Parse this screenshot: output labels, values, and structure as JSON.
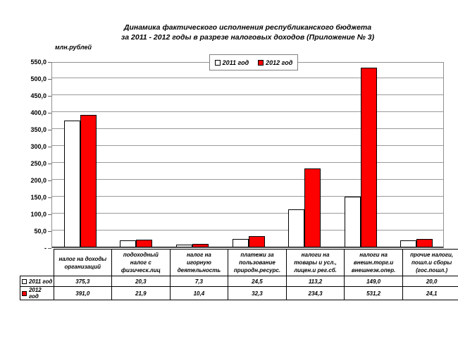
{
  "chart_data": {
    "type": "bar",
    "title": "Динамика фактического исполнения республиканского бюджета за 2011 - 2012 годы в разрезе налоговых доходов (Приложение № 3)",
    "title_line1": "Динамика фактического исполнения республиканского бюджета",
    "title_line2": "за 2011 - 2012 годы в разрезе налоговых доходов (Приложение № 3)",
    "units_label": "млн.рублей",
    "categories": [
      "налог на доходы\nорганизаций",
      "подоходный\nналог с\nфизическ.лиц",
      "налог на\nигорную\nдеятельность",
      "платежи за\nпользование\nприродн.ресурс.",
      "налоги на\nтовары и усл.,\nлицен.и рег.сб.",
      "налоги на\nвнешн.торг.и\nвнешнеэк.опер.",
      "прочие налоги,\nпошл.и сборы\n(гос.пошл.)"
    ],
    "series": [
      {
        "name": "2011 год",
        "color": "#FFFFFF",
        "values": [
          375.3,
          20.3,
          7.3,
          24.5,
          113.2,
          149.0,
          20.0
        ]
      },
      {
        "name": "2012 год",
        "color": "#FF0000",
        "values": [
          391.0,
          21.9,
          10.4,
          32.3,
          234.3,
          531.2,
          24.1
        ]
      }
    ],
    "table_values_display": [
      [
        "375,3",
        "20,3",
        "7,3",
        "24,5",
        "113,2",
        "149,0",
        "20,0"
      ],
      [
        "391,0",
        "21,9",
        "10,4",
        "32,3",
        "234,3",
        "531,2",
        "24,1"
      ]
    ],
    "y_axis": {
      "min": 0,
      "max": 550,
      "step": 50,
      "zero_label": "-",
      "tick_labels": [
        "-",
        "50,0",
        "100,0",
        "150,0",
        "200,0",
        "250,0",
        "300,0",
        "350,0",
        "400,0",
        "450,0",
        "500,0",
        "550,0"
      ]
    },
    "legend_position": "top-center",
    "grid": true,
    "data_table": true
  },
  "colors": {
    "bar_2011": "#FFFFFF",
    "bar_2012": "#FF0000",
    "gridline": "#9a9a9a",
    "plot_border": "#909090",
    "table_border": "#000000"
  }
}
